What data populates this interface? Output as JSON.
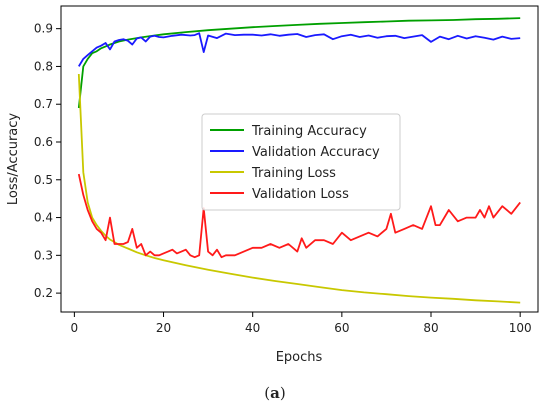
{
  "caption": {
    "open": "(",
    "letter": "a",
    "close": ")"
  },
  "chart_data": {
    "type": "line",
    "title": "",
    "xlabel": "Epochs",
    "ylabel": "Loss/Accuracy",
    "xlim": [
      -3,
      104
    ],
    "ylim": [
      0.15,
      0.96
    ],
    "xticks": [
      0,
      20,
      40,
      60,
      80,
      100
    ],
    "yticks": [
      0.2,
      0.3,
      0.4,
      0.5,
      0.6,
      0.7,
      0.8,
      0.9
    ],
    "grid": false,
    "legend_position": "center",
    "series": [
      {
        "name": "Training Accuracy",
        "color": "#00a000",
        "x": [
          1,
          2,
          3,
          4,
          5,
          6,
          7,
          8,
          9,
          10,
          12,
          15,
          18,
          20,
          25,
          30,
          35,
          40,
          45,
          50,
          55,
          60,
          65,
          70,
          75,
          80,
          85,
          90,
          95,
          100
        ],
        "y": [
          0.69,
          0.8,
          0.82,
          0.835,
          0.84,
          0.848,
          0.853,
          0.858,
          0.862,
          0.866,
          0.871,
          0.877,
          0.882,
          0.885,
          0.891,
          0.896,
          0.9,
          0.904,
          0.907,
          0.91,
          0.913,
          0.915,
          0.917,
          0.919,
          0.921,
          0.922,
          0.923,
          0.925,
          0.926,
          0.928
        ]
      },
      {
        "name": "Validation Accuracy",
        "color": "#1a1aff",
        "x": [
          1,
          2,
          3,
          4,
          5,
          6,
          7,
          8,
          9,
          10,
          11,
          12,
          13,
          14,
          15,
          16,
          17,
          18,
          19,
          20,
          22,
          24,
          26,
          27,
          28,
          29,
          30,
          32,
          34,
          36,
          38,
          40,
          42,
          44,
          46,
          48,
          50,
          52,
          54,
          56,
          58,
          60,
          62,
          64,
          66,
          68,
          70,
          72,
          74,
          76,
          78,
          80,
          82,
          84,
          86,
          88,
          90,
          92,
          94,
          96,
          98,
          100
        ],
        "y": [
          0.8,
          0.82,
          0.83,
          0.84,
          0.85,
          0.855,
          0.862,
          0.845,
          0.866,
          0.87,
          0.872,
          0.868,
          0.858,
          0.874,
          0.877,
          0.866,
          0.879,
          0.881,
          0.878,
          0.877,
          0.881,
          0.884,
          0.882,
          0.883,
          0.888,
          0.838,
          0.882,
          0.875,
          0.887,
          0.883,
          0.884,
          0.884,
          0.882,
          0.885,
          0.881,
          0.884,
          0.886,
          0.878,
          0.883,
          0.885,
          0.872,
          0.88,
          0.884,
          0.878,
          0.882,
          0.876,
          0.88,
          0.881,
          0.875,
          0.879,
          0.883,
          0.865,
          0.879,
          0.872,
          0.881,
          0.874,
          0.88,
          0.876,
          0.871,
          0.879,
          0.873,
          0.875
        ]
      },
      {
        "name": "Training Loss",
        "color": "#c8c800",
        "x": [
          1,
          2,
          3,
          4,
          5,
          6,
          7,
          8,
          9,
          10,
          12,
          14,
          16,
          18,
          20,
          25,
          30,
          35,
          40,
          45,
          50,
          55,
          60,
          65,
          70,
          75,
          80,
          85,
          90,
          95,
          100
        ],
        "y": [
          0.78,
          0.52,
          0.44,
          0.4,
          0.38,
          0.365,
          0.352,
          0.342,
          0.335,
          0.328,
          0.318,
          0.308,
          0.3,
          0.293,
          0.287,
          0.274,
          0.262,
          0.251,
          0.241,
          0.232,
          0.224,
          0.216,
          0.208,
          0.202,
          0.197,
          0.192,
          0.188,
          0.185,
          0.181,
          0.178,
          0.175
        ]
      },
      {
        "name": "Validation Loss",
        "color": "#ff1a1a",
        "x": [
          1,
          2,
          3,
          4,
          5,
          6,
          7,
          8,
          9,
          10,
          11,
          12,
          13,
          14,
          15,
          16,
          17,
          18,
          19,
          20,
          21,
          22,
          23,
          24,
          25,
          26,
          27,
          28,
          29,
          30,
          31,
          32,
          33,
          34,
          36,
          38,
          40,
          42,
          44,
          46,
          48,
          50,
          51,
          52,
          54,
          56,
          58,
          60,
          62,
          64,
          66,
          68,
          70,
          71,
          72,
          74,
          76,
          78,
          80,
          81,
          82,
          84,
          86,
          88,
          90,
          91,
          92,
          93,
          94,
          96,
          98,
          100
        ],
        "y": [
          0.515,
          0.46,
          0.42,
          0.39,
          0.37,
          0.36,
          0.34,
          0.4,
          0.33,
          0.33,
          0.33,
          0.335,
          0.37,
          0.32,
          0.33,
          0.3,
          0.31,
          0.3,
          0.3,
          0.305,
          0.31,
          0.315,
          0.305,
          0.31,
          0.315,
          0.3,
          0.295,
          0.3,
          0.425,
          0.31,
          0.3,
          0.315,
          0.295,
          0.3,
          0.3,
          0.31,
          0.32,
          0.32,
          0.33,
          0.32,
          0.33,
          0.31,
          0.345,
          0.32,
          0.34,
          0.34,
          0.33,
          0.36,
          0.34,
          0.35,
          0.36,
          0.35,
          0.37,
          0.41,
          0.36,
          0.37,
          0.38,
          0.37,
          0.43,
          0.38,
          0.38,
          0.42,
          0.39,
          0.4,
          0.4,
          0.42,
          0.4,
          0.43,
          0.4,
          0.43,
          0.41,
          0.44
        ]
      }
    ]
  }
}
